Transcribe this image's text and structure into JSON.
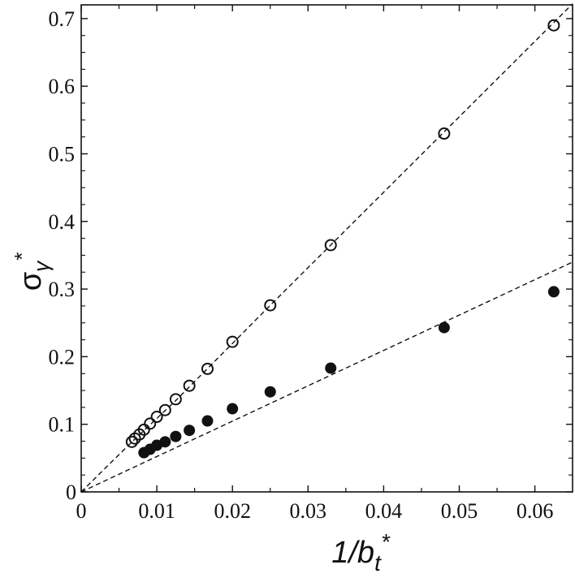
{
  "chart_data": {
    "type": "scatter",
    "title": "",
    "xlabel": "1/b_t*",
    "ylabel": "σ_γ*",
    "xlabel_parts": {
      "main": "1/b",
      "sub": "t",
      "sup": "*"
    },
    "ylabel_parts": {
      "main": "σ",
      "sub": "γ",
      "sup": "*"
    },
    "xlim": [
      0,
      0.065
    ],
    "ylim": [
      0,
      0.72
    ],
    "x_ticks": [
      0,
      0.01,
      0.02,
      0.03,
      0.04,
      0.05,
      0.06
    ],
    "x_tick_labels": [
      "0",
      "0.01",
      "0.02",
      "0.03",
      "0.04",
      "0.05",
      "0.06"
    ],
    "y_ticks": [
      0,
      0.1,
      0.2,
      0.3,
      0.4,
      0.5,
      0.6,
      0.7
    ],
    "y_tick_labels": [
      "0",
      "0.1",
      "0.2",
      "0.3",
      "0.4",
      "0.5",
      "0.6",
      "0.7"
    ],
    "grid": false,
    "legend": null,
    "series": [
      {
        "name": "open circles",
        "marker": "open-circle",
        "x": [
          0.0067,
          0.0071,
          0.0077,
          0.0083,
          0.0091,
          0.01,
          0.0111,
          0.0125,
          0.0143,
          0.0167,
          0.02,
          0.025,
          0.033,
          0.048,
          0.0625
        ],
        "y": [
          0.074,
          0.079,
          0.085,
          0.092,
          0.101,
          0.111,
          0.121,
          0.137,
          0.157,
          0.182,
          0.222,
          0.276,
          0.365,
          0.53,
          0.69
        ]
      },
      {
        "name": "filled circles",
        "marker": "filled-circle",
        "x": [
          0.0083,
          0.0091,
          0.01,
          0.0111,
          0.0125,
          0.0143,
          0.0167,
          0.02,
          0.025,
          0.033,
          0.048,
          0.0625
        ],
        "y": [
          0.058,
          0.063,
          0.069,
          0.074,
          0.082,
          0.091,
          0.105,
          0.123,
          0.148,
          0.183,
          0.243,
          0.296
        ]
      }
    ],
    "fit_lines": [
      {
        "name": "upper dashed fit",
        "style": "dashed",
        "points": [
          [
            0,
            0
          ],
          [
            0.0067,
            0.074
          ],
          [
            0.0125,
            0.135
          ],
          [
            0.025,
            0.276
          ],
          [
            0.065,
            0.722
          ]
        ]
      },
      {
        "name": "lower dashed fit",
        "style": "dashed",
        "points": [
          [
            0,
            0
          ],
          [
            0.065,
            0.34
          ]
        ]
      }
    ]
  }
}
